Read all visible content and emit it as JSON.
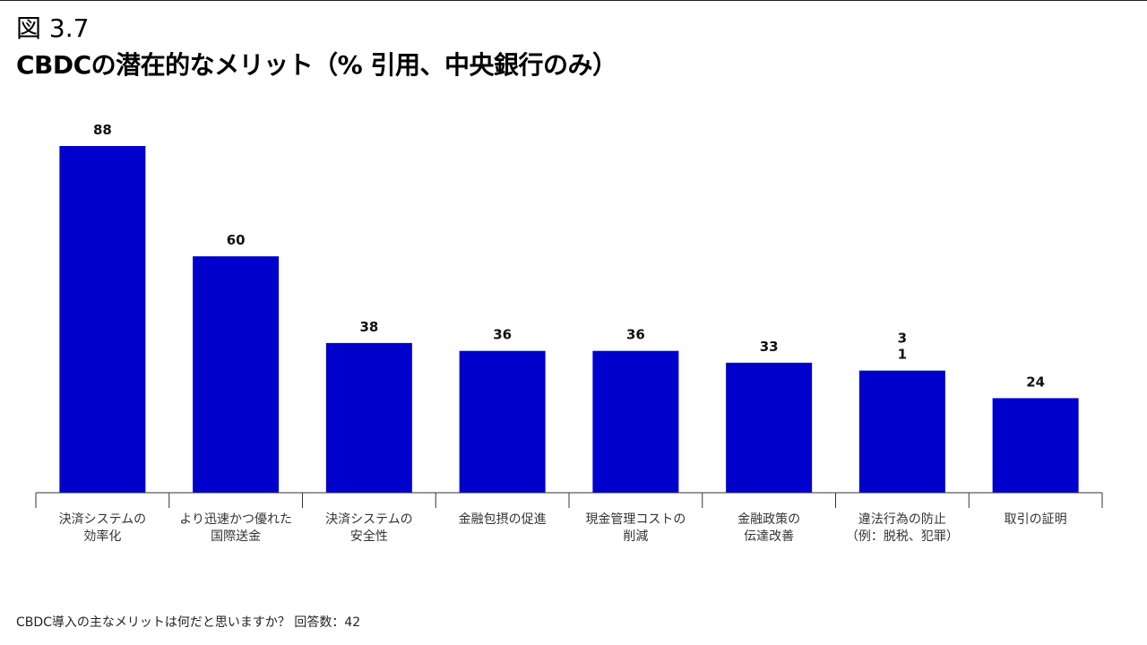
{
  "header": {
    "figure_label": "図 3.7",
    "title": "CBDCの潜在的なメリット（% 引用、中央銀行のみ）"
  },
  "chart_data": {
    "type": "bar",
    "categories": [
      [
        "決済システムの",
        "効率化"
      ],
      [
        "より迅速かつ優れた",
        "国際送金"
      ],
      [
        "決済システムの",
        "安全性"
      ],
      [
        "金融包摂の促進"
      ],
      [
        "現金管理コストの",
        "削減"
      ],
      [
        "金融政策の",
        "伝達改善"
      ],
      [
        "違法行為の防止",
        "（例：脱税、犯罪）"
      ],
      [
        "取引の証明"
      ]
    ],
    "values": [
      88,
      60,
      38,
      36,
      36,
      33,
      31,
      24
    ],
    "value_labels": [
      [
        "88"
      ],
      [
        "60"
      ],
      [
        "38"
      ],
      [
        "36"
      ],
      [
        "36"
      ],
      [
        "33"
      ],
      [
        "3",
        "1"
      ],
      [
        "24"
      ]
    ],
    "bar_color": "#0000CC",
    "ylim": [
      0,
      88
    ]
  },
  "footnote": "CBDC導入の主なメリットは何だと思いますか？ 回答数：42"
}
